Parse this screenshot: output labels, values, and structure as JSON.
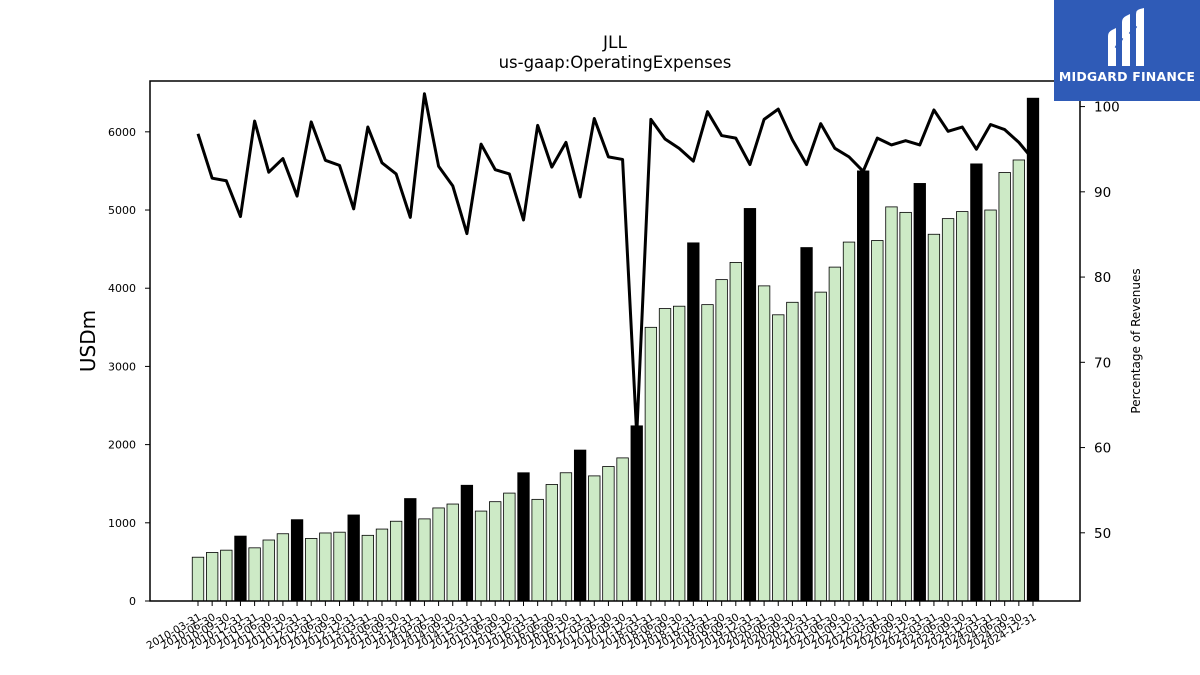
{
  "logo": {
    "text": "MIDGARD FINANCE",
    "color": "#2f5bb7"
  },
  "chart_data": {
    "type": "bar",
    "title": "JLL",
    "subtitle": "us-gaap:OperatingExpenses",
    "ylabel": "USDm",
    "y2label": "Percentage of Revenues",
    "ylim": [
      0,
      6650
    ],
    "y2lim": [
      42,
      103
    ],
    "yticks": [
      0,
      1000,
      2000,
      3000,
      4000,
      5000,
      6000
    ],
    "y2ticks": [
      50,
      60,
      70,
      80,
      90,
      100
    ],
    "colors": {
      "quarter_bar": "#cdeac6",
      "annual_bar": "#000000",
      "line": "#000000"
    },
    "categories": [
      "2010-03-31",
      "2010-06-30",
      "2010-09-30",
      "2010-12-31",
      "2011-03-31",
      "2011-06-30",
      "2011-09-30",
      "2011-12-31",
      "2012-03-31",
      "2012-06-30",
      "2012-09-30",
      "2012-12-31",
      "2013-03-31",
      "2013-06-30",
      "2013-09-30",
      "2013-12-31",
      "2014-03-31",
      "2014-06-30",
      "2014-09-30",
      "2014-12-31",
      "2015-03-31",
      "2015-06-30",
      "2015-09-30",
      "2015-12-31",
      "2016-03-31",
      "2016-06-30",
      "2016-09-30",
      "2016-12-31",
      "2017-03-31",
      "2017-06-30",
      "2017-09-30",
      "2017-12-31",
      "2018-03-31",
      "2018-06-30",
      "2018-09-30",
      "2018-12-31",
      "2019-03-31",
      "2019-06-30",
      "2019-09-30",
      "2019-12-31",
      "2020-03-31",
      "2020-06-30",
      "2020-09-30",
      "2020-12-31",
      "2021-03-31",
      "2021-06-30",
      "2021-09-30",
      "2021-12-31",
      "2022-03-31",
      "2022-06-30",
      "2022-09-30",
      "2022-12-31",
      "2023-03-31",
      "2023-06-30",
      "2023-09-30",
      "2023-12-31",
      "2024-03-31",
      "2024-06-30",
      "2024-09-30",
      "2024-12-31"
    ],
    "tick_labels": [
      "2010-03-31",
      "2010-06-30",
      "2010-09-30",
      "2010-12-31",
      "2011-03-31",
      "2011-06-30",
      "2011-09-30",
      "2011-12-31",
      "2012-03-31",
      "2012-06-30",
      "2012-09-30",
      "2012-12-31",
      "2013-03-31",
      "2013-06-30",
      "2013-09-30",
      "2013-12-31",
      "2014-03-31",
      "2014-06-30",
      "2014-09-30",
      "2014-12-31",
      "2015-03-31",
      "2015-06-30",
      "2015-09-30",
      "2015-12-31",
      "2016-03-31",
      "2016-06-30",
      "2016-09-30",
      "2016-12-31",
      "2017-03-31",
      "2017-06-30",
      "2017-09-30",
      "2017-12-31",
      "2018-03-31",
      "2018-06-30",
      "2018-09-30",
      "2018-12-31",
      "2019-03-31",
      "2019-06-30",
      "2019-09-30",
      "2019-12-31",
      "2020-03-31",
      "2020-06-30",
      "2020-09-30",
      "2020-12-31",
      "2021-03-31",
      "2021-06-30",
      "2021-09-30",
      "2021-12-31",
      "2022-03-31",
      "2022-06-30",
      "2022-09-30",
      "2022-12-31",
      "2023-03-31",
      "2023-06-30",
      "2023-09-30",
      "2023-12-31",
      "2024-03-31",
      "2024-06-30",
      "2024-09-30",
      "2024-12-31"
    ],
    "series": [
      {
        "values": [
          560,
          620,
          650,
          830,
          680,
          780,
          860,
          1040,
          800,
          870,
          880,
          1100,
          840,
          920,
          1020,
          1310,
          1050,
          1190,
          1240,
          1480,
          1150,
          1270,
          1380,
          1640,
          1300,
          1490,
          1640,
          1930,
          1600,
          1720,
          1830,
          2240,
          3500,
          3740,
          3770,
          4580,
          3790,
          4110,
          4330,
          5020,
          4030,
          3660,
          3820,
          4520,
          3950,
          4270,
          4590,
          5500,
          4610,
          5040,
          4970,
          5340,
          4690,
          4890,
          4980,
          5590,
          5000,
          5480,
          5640,
          6430
        ]
      },
      {
        "values": [
          96.8,
          91.6,
          91.3,
          87.1,
          98.3,
          92.3,
          93.9,
          89.5,
          98.2,
          93.7,
          93.1,
          88.0,
          97.6,
          93.4,
          92.1,
          87.0,
          101.5,
          93.0,
          90.7,
          85.1,
          95.6,
          92.6,
          92.1,
          86.7,
          97.8,
          92.9,
          95.8,
          89.4,
          98.6,
          94.1,
          93.8,
          61.5,
          98.5,
          96.2,
          95.1,
          93.6,
          99.4,
          96.6,
          96.3,
          93.2,
          98.5,
          99.7,
          96.1,
          93.2,
          98.0,
          95.1,
          94.1,
          92.4,
          96.3,
          95.5,
          96.0,
          95.5,
          99.6,
          97.1,
          97.6,
          95.0,
          97.9,
          97.3,
          95.8,
          93.8
        ]
      }
    ]
  }
}
